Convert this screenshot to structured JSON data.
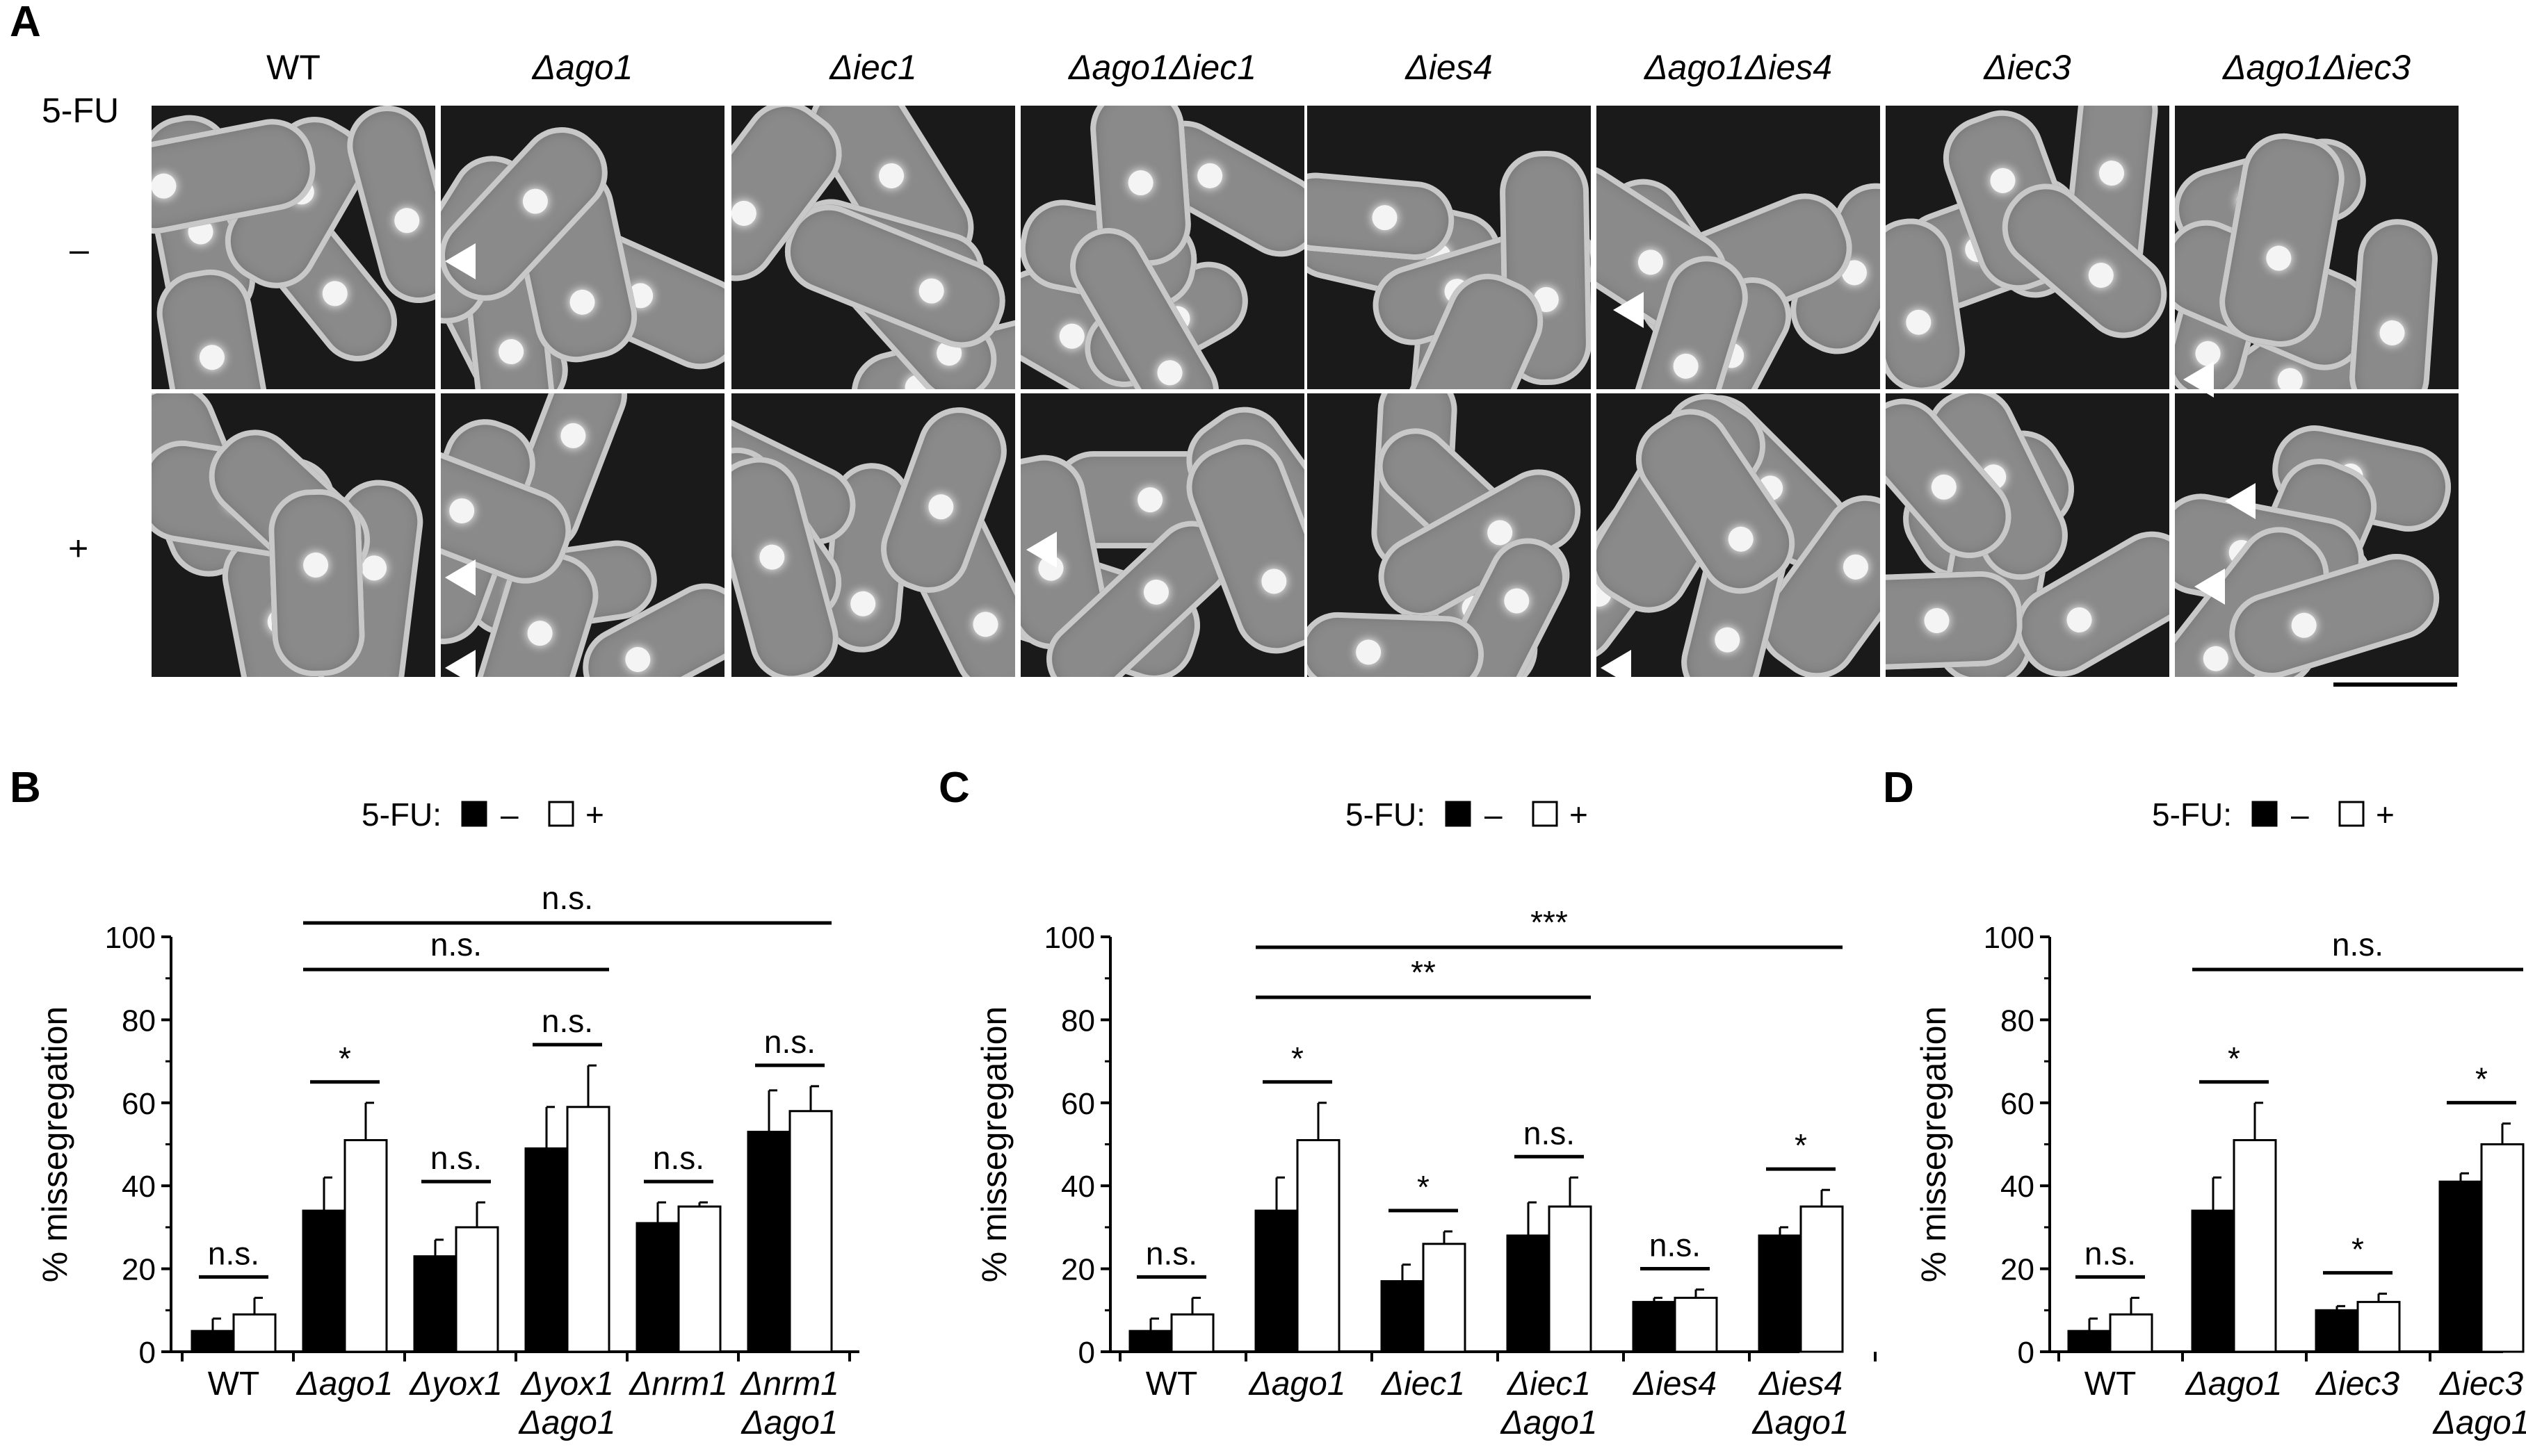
{
  "panel_a": {
    "letter": "A",
    "columns": [
      "WT",
      "Δago1",
      "Δiec1",
      "Δago1Δiec1",
      "Δies4",
      "Δago1Δies4",
      "Δiec3",
      "Δago1Δiec3"
    ],
    "row_header": "5-FU",
    "rows": [
      "–",
      "+"
    ]
  },
  "chart_data": [
    {
      "panel": "B",
      "type": "bar",
      "legend_label": "5-FU:",
      "legend_entries": [
        {
          "label": "–",
          "color": "#000000"
        },
        {
          "label": "+",
          "color": "#ffffff"
        }
      ],
      "ylabel": "% missegregation",
      "ylim": [
        0,
        100
      ],
      "yticks": [
        0,
        20,
        40,
        60,
        80,
        100
      ],
      "categories": [
        [
          "WT"
        ],
        [
          "Δago1"
        ],
        [
          "Δyox1"
        ],
        [
          "Δyox1",
          "Δago1"
        ],
        [
          "Δnrm1"
        ],
        [
          "Δnrm1",
          "Δago1"
        ]
      ],
      "series": [
        {
          "name": "–",
          "values": [
            5,
            34,
            23,
            49,
            31,
            53
          ],
          "errors": [
            3,
            8,
            4,
            10,
            5,
            10
          ]
        },
        {
          "name": "+",
          "values": [
            9,
            51,
            30,
            59,
            35,
            58
          ],
          "errors": [
            4,
            9,
            6,
            10,
            1,
            6
          ]
        }
      ],
      "pair_labels": [
        "n.s.",
        "*",
        "n.s.",
        "n.s.",
        "n.s.",
        "n.s."
      ],
      "comparisons": [
        {
          "from": 1,
          "to": 3,
          "label": "n.s."
        },
        {
          "from": 1,
          "to": 5,
          "label": "n.s."
        }
      ]
    },
    {
      "panel": "C",
      "type": "bar",
      "legend_label": "5-FU:",
      "legend_entries": [
        {
          "label": "–",
          "color": "#000000"
        },
        {
          "label": "+",
          "color": "#ffffff"
        }
      ],
      "ylabel": "% missegregation",
      "ylim": [
        0,
        100
      ],
      "yticks": [
        0,
        20,
        40,
        60,
        80,
        100
      ],
      "categories": [
        [
          "WT"
        ],
        [
          "Δago1"
        ],
        [
          "Δiec1"
        ],
        [
          "Δiec1",
          "Δago1"
        ],
        [
          "Δies4"
        ],
        [
          "Δies4",
          "Δago1"
        ]
      ],
      "series": [
        {
          "name": "–",
          "values": [
            5,
            34,
            17,
            28,
            12,
            28
          ],
          "errors": [
            3,
            8,
            4,
            8,
            1,
            2
          ]
        },
        {
          "name": "+",
          "values": [
            9,
            51,
            26,
            35,
            13,
            35
          ],
          "errors": [
            4,
            9,
            3,
            7,
            2,
            4
          ]
        }
      ],
      "pair_labels": [
        "n.s.",
        "*",
        "*",
        "n.s.",
        "n.s.",
        "*"
      ],
      "comparisons": [
        {
          "from": 1,
          "to": 3,
          "label": "**"
        },
        {
          "from": 1,
          "to": 5,
          "label": "***"
        }
      ]
    },
    {
      "panel": "D",
      "type": "bar",
      "legend_label": "5-FU:",
      "legend_entries": [
        {
          "label": "–",
          "color": "#000000"
        },
        {
          "label": "+",
          "color": "#ffffff"
        }
      ],
      "ylabel": "% missegregation",
      "ylim": [
        0,
        100
      ],
      "yticks": [
        0,
        20,
        40,
        60,
        80,
        100
      ],
      "categories": [
        [
          "WT"
        ],
        [
          "Δago1"
        ],
        [
          "Δiec3"
        ],
        [
          "Δiec3",
          "Δago1"
        ]
      ],
      "series": [
        {
          "name": "–",
          "values": [
            5,
            34,
            10,
            41
          ],
          "errors": [
            3,
            8,
            1,
            2
          ]
        },
        {
          "name": "+",
          "values": [
            9,
            51,
            12,
            50
          ],
          "errors": [
            4,
            9,
            2,
            5
          ]
        }
      ],
      "pair_labels": [
        "n.s.",
        "*",
        "*",
        "*"
      ],
      "comparisons": [
        {
          "from": 1,
          "to": 3,
          "label": "n.s."
        }
      ]
    }
  ]
}
